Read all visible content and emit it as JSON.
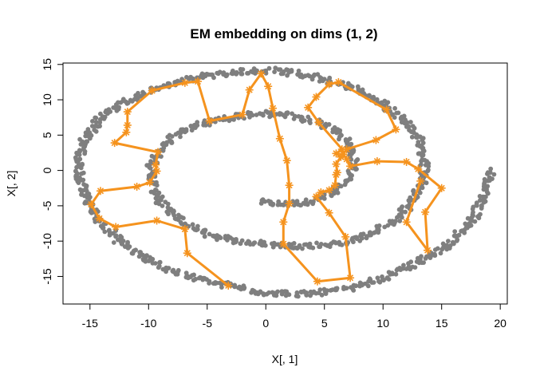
{
  "chart_data": {
    "type": "scatter",
    "title": "EM embedding on dims (1, 2)",
    "xlabel": "X[, 1]",
    "ylabel": "X[, 2]",
    "xlim": [
      -17.3,
      20.6
    ],
    "ylim": [
      -18.9,
      15.2
    ],
    "xticks": [
      -15,
      -10,
      -5,
      0,
      5,
      10,
      15,
      20
    ],
    "yticks": [
      -15,
      -10,
      -5,
      0,
      5,
      10,
      15
    ],
    "grid": false,
    "legend": "none",
    "colors": {
      "points": "#7f7f7f",
      "path": "#f5931e"
    },
    "points_description": "Gray points follow a spiral; listed as the spiral's parametric trace (x,y) in data units",
    "spiral_trace": [
      [
        -0.5,
        -4.5
      ],
      [
        1.5,
        -4.8
      ],
      [
        3.5,
        -4.5
      ],
      [
        5.5,
        -3.5
      ],
      [
        7.0,
        -1.5
      ],
      [
        7.6,
        1.0
      ],
      [
        7.2,
        3.5
      ],
      [
        6.0,
        5.5
      ],
      [
        4.2,
        7.0
      ],
      [
        2.0,
        7.8
      ],
      [
        -0.5,
        8.1
      ],
      [
        -3.0,
        7.5
      ],
      [
        -5.5,
        6.6
      ],
      [
        -7.5,
        5.3
      ],
      [
        -9.0,
        3.2
      ],
      [
        -9.8,
        0.5
      ],
      [
        -9.6,
        -2.5
      ],
      [
        -8.8,
        -5.0
      ],
      [
        -7.2,
        -7.3
      ],
      [
        -5.0,
        -9.0
      ],
      [
        -2.5,
        -10.0
      ],
      [
        0.5,
        -10.5
      ],
      [
        3.5,
        -10.7
      ],
      [
        6.5,
        -10.3
      ],
      [
        9.0,
        -9.0
      ],
      [
        11.0,
        -7.0
      ],
      [
        12.5,
        -4.5
      ],
      [
        13.4,
        -1.5
      ],
      [
        13.6,
        1.5
      ],
      [
        13.0,
        4.5
      ],
      [
        11.8,
        7.0
      ],
      [
        10.0,
        9.5
      ],
      [
        7.5,
        11.6
      ],
      [
        4.5,
        13.2
      ],
      [
        1.0,
        14.1
      ],
      [
        -2.5,
        14.0
      ],
      [
        -6.0,
        13.2
      ],
      [
        -9.0,
        11.8
      ],
      [
        -12.0,
        9.8
      ],
      [
        -14.2,
        7.3
      ],
      [
        -15.6,
        4.0
      ],
      [
        -16.0,
        0.5
      ],
      [
        -15.6,
        -3.0
      ],
      [
        -14.5,
        -6.5
      ],
      [
        -12.5,
        -10.0
      ],
      [
        -10.0,
        -12.8
      ],
      [
        -7.0,
        -14.8
      ],
      [
        -3.5,
        -16.2
      ],
      [
        0.0,
        -17.3
      ],
      [
        3.5,
        -17.5
      ],
      [
        7.0,
        -16.8
      ],
      [
        10.0,
        -15.3
      ],
      [
        13.0,
        -13.0
      ],
      [
        15.5,
        -10.5
      ],
      [
        17.5,
        -7.3
      ],
      [
        18.8,
        -3.0
      ],
      [
        19.2,
        0.0
      ]
    ],
    "series": [
      {
        "values_xy": [
          [
            -3.2,
            -16.3
          ],
          [
            -6.7,
            -11.7
          ],
          [
            -6.9,
            -8.3
          ],
          [
            -9.3,
            -7.1
          ],
          [
            -12.8,
            -8.0
          ],
          [
            -14.2,
            -6.8
          ],
          [
            -14.9,
            -4.8
          ],
          [
            -14.1,
            -2.9
          ],
          [
            -11.0,
            -2.3
          ],
          [
            -9.9,
            -1.7
          ],
          [
            -9.3,
            -0.1
          ],
          [
            -9.4,
            0.8
          ],
          [
            -9.2,
            2.6
          ],
          [
            -12.9,
            3.9
          ],
          [
            -11.9,
            5.4
          ],
          [
            -11.8,
            6.4
          ],
          [
            -11.8,
            8.3
          ],
          [
            -9.7,
            11.3
          ],
          [
            -6.9,
            12.4
          ],
          [
            -5.8,
            12.6
          ],
          [
            -4.8,
            7.0
          ],
          [
            -2.0,
            7.9
          ],
          [
            -1.4,
            11.4
          ],
          [
            -0.4,
            13.7
          ],
          [
            0.2,
            11.9
          ],
          [
            0.6,
            8.8
          ],
          [
            1.2,
            4.5
          ],
          [
            1.8,
            1.4
          ],
          [
            2.0,
            -2.1
          ],
          [
            2.0,
            -4.7
          ],
          [
            1.5,
            -7.3
          ],
          [
            1.5,
            -10.4
          ],
          [
            4.4,
            -15.7
          ],
          [
            7.2,
            -15.2
          ],
          [
            6.8,
            -9.4
          ],
          [
            5.4,
            -6.0
          ],
          [
            4.3,
            -3.7
          ],
          [
            4.7,
            -3.1
          ],
          [
            5.4,
            -2.8
          ],
          [
            5.9,
            -2.1
          ],
          [
            6.0,
            -0.6
          ],
          [
            6.1,
            -0.3
          ],
          [
            6.0,
            0.9
          ],
          [
            6.4,
            1.9
          ],
          [
            6.0,
            2.4
          ],
          [
            6.5,
            3.0
          ],
          [
            4.5,
            6.8
          ],
          [
            3.6,
            8.9
          ],
          [
            4.3,
            10.4
          ],
          [
            5.4,
            12.2
          ],
          [
            6.2,
            12.5
          ],
          [
            10.3,
            8.6
          ],
          [
            11.1,
            5.8
          ],
          [
            9.4,
            4.3
          ],
          [
            6.9,
            3.0
          ],
          [
            6.6,
            2.3
          ],
          [
            6.9,
            1.6
          ],
          [
            7.2,
            0.6
          ],
          [
            9.5,
            1.3
          ],
          [
            12.0,
            1.2
          ],
          [
            13.0,
            0.2
          ],
          [
            15.0,
            -2.5
          ],
          [
            13.6,
            -5.9
          ],
          [
            13.8,
            -11.3
          ],
          [
            12.0,
            -7.3
          ],
          [
            13.2,
            -1.5
          ]
        ]
      }
    ]
  }
}
